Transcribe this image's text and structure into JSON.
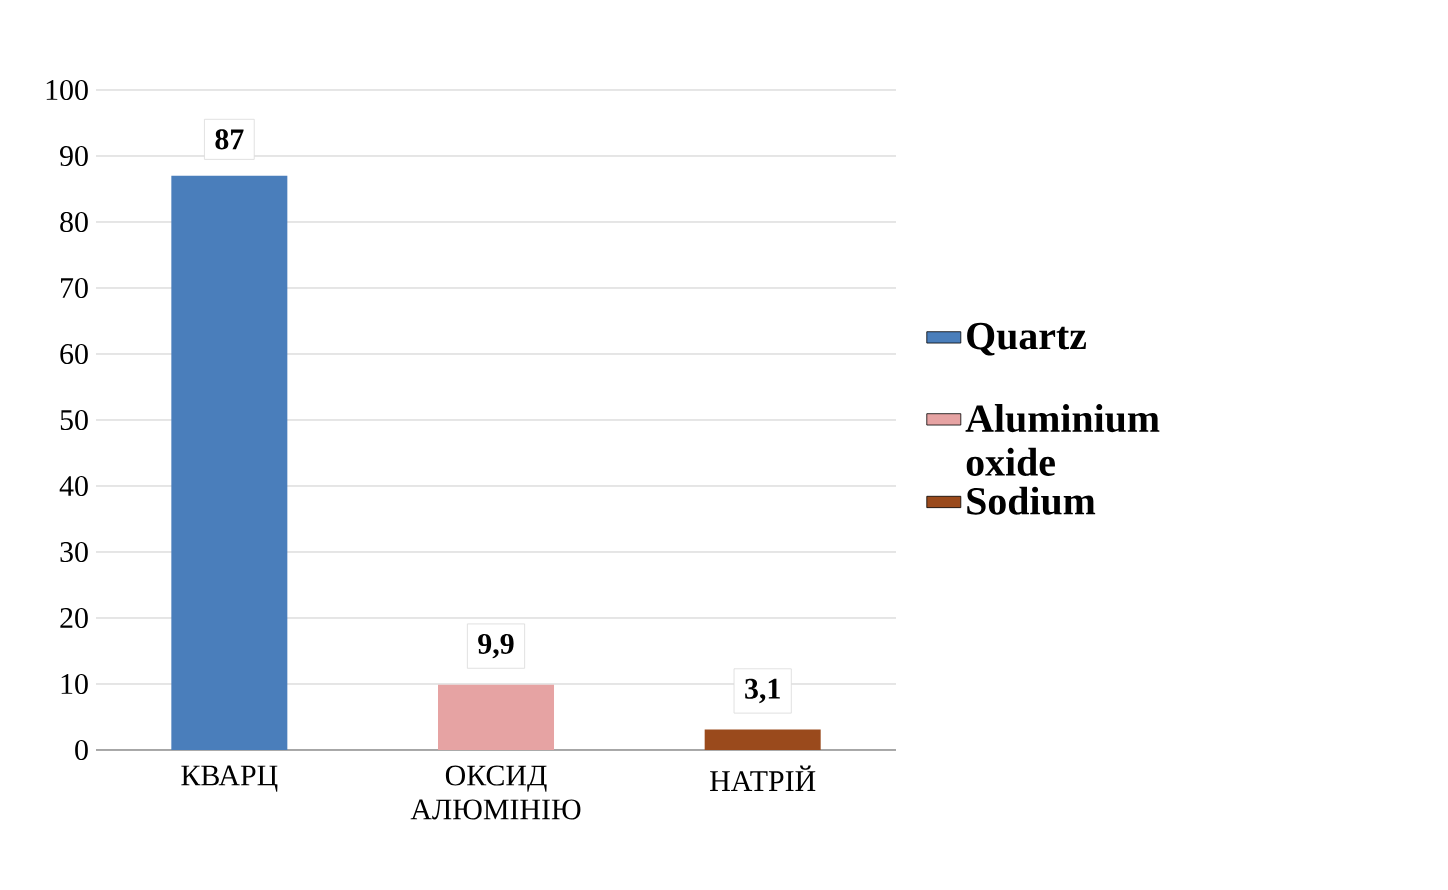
{
  "chart_data": {
    "type": "bar",
    "categories": [
      "КВАРЦ",
      "ОКСИД АЛЮМІНІЮ",
      "НАТРІЙ"
    ],
    "series": [
      {
        "name": "Quartz",
        "color": "#4a7ebb",
        "values": [
          87,
          null,
          null
        ],
        "value_labels": [
          "87",
          null,
          null
        ]
      },
      {
        "name": "Aluminium oxide",
        "color": "#e6a3a3",
        "values": [
          null,
          9.9,
          null
        ],
        "value_labels": [
          null,
          "9,9",
          null
        ]
      },
      {
        "name": "Sodium",
        "color": "#9a4a1c",
        "values": [
          null,
          null,
          3.1
        ],
        "value_labels": [
          null,
          null,
          "3,1"
        ]
      }
    ],
    "ylim": [
      0,
      100
    ],
    "yticks": [
      0,
      10,
      20,
      30,
      40,
      50,
      60,
      70,
      80,
      90,
      100
    ],
    "grid": "y",
    "legend": "right"
  }
}
